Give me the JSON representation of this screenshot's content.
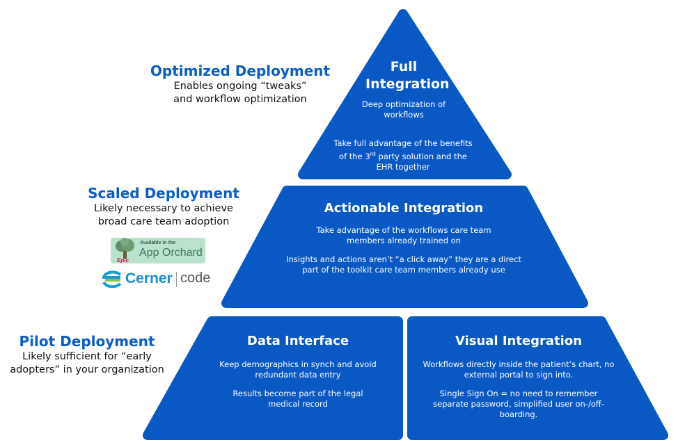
{
  "colors": {
    "pyramid": "#0a58c4",
    "title": "#0b5cc4"
  },
  "pyramid": {
    "top": {
      "title": "Full Integration",
      "p1": "Deep optimization of workflows",
      "p2_pre": "Take full advantage of the benefits of the 3",
      "p2_sup": "rd",
      "p2_post": " party solution and the EHR together"
    },
    "middle": {
      "title": "Actionable Integration",
      "p1": "Take advantage of the workflows care team members already trained on",
      "p2": "Insights and actions aren’t “a click away” they are a direct part of the toolkit care team members already use"
    },
    "bottom_left": {
      "title": "Data Interface",
      "p1": "Keep demographics in synch and avoid redundant data entry",
      "p2": "Results become part of the legal medical record"
    },
    "bottom_right": {
      "title": "Visual Integration",
      "p1": "Workflows directly inside the patient’s chart, no external portal to sign into.",
      "p2": "Single Sign On = no need to remember separate password, simplified user on-/off-boarding."
    }
  },
  "labels": {
    "optimized": {
      "title": "Optimized Deployment",
      "desc": "Enables ongoing “tweaks” and workflow optimization"
    },
    "scaled": {
      "title": "Scaled Deployment",
      "desc": "Likely necessary to achieve broad care team adoption"
    },
    "pilot": {
      "title": "Pilot Deployment",
      "desc": "Likely sufficient for “early adopters” in your organization"
    }
  },
  "logos": {
    "epic": {
      "line1": "Available in the",
      "line2": "App Orchard",
      "brand": "Epic"
    },
    "cerner": {
      "brand": "Cerner",
      "product": "code"
    }
  }
}
